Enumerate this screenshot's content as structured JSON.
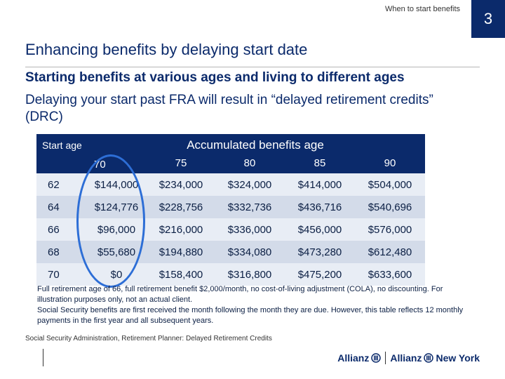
{
  "header": {
    "topic": "When to start benefits",
    "page_number": "3"
  },
  "title": "Enhancing benefits by delaying start date",
  "subtitle": "Starting benefits at various ages and living to different ages",
  "description": "Delaying your start past FRA will result in “delayed retirement credits” (DRC)",
  "table": {
    "start_age_header": "Start age",
    "group_header": "Accumulated benefits age",
    "age_columns": [
      "70",
      "75",
      "80",
      "85",
      "90"
    ],
    "rows": [
      {
        "start_age": "62",
        "values": [
          "$144,000",
          "$234,000",
          "$324,000",
          "$414,000",
          "$504,000"
        ]
      },
      {
        "start_age": "64",
        "values": [
          "$124,776",
          "$228,756",
          "$332,736",
          "$436,716",
          "$540,696"
        ]
      },
      {
        "start_age": "66",
        "values": [
          "$96,000",
          "$216,000",
          "$336,000",
          "$456,000",
          "$576,000"
        ]
      },
      {
        "start_age": "68",
        "values": [
          "$55,680",
          "$194,880",
          "$334,080",
          "$473,280",
          "$612,480"
        ]
      },
      {
        "start_age": "70",
        "values": [
          "$0",
          "$158,400",
          "$316,800",
          "$475,200",
          "$633,600"
        ]
      }
    ]
  },
  "notes": [
    "Full retirement age of 66, full retirement benefit $2,000/month, no cost-of-living adjustment (COLA), no discounting. For illustration purposes only, not an actual client.",
    "Social Security benefits are first received the month following the month they are due. However, this table reflects 12 monthly payments in the first year and all subsequent years."
  ],
  "source": "Social Security Administration, Retirement Planner: Delayed Retirement Credits",
  "logo": {
    "primary": "Allianz",
    "secondary": "Allianz",
    "secondary_suffix": "New York"
  },
  "colors": {
    "brand_navy": "#0b2a6b",
    "highlight_blue": "#2d6ed6",
    "row_light": "#e8edf5",
    "row_dark": "#d3dbe9"
  }
}
